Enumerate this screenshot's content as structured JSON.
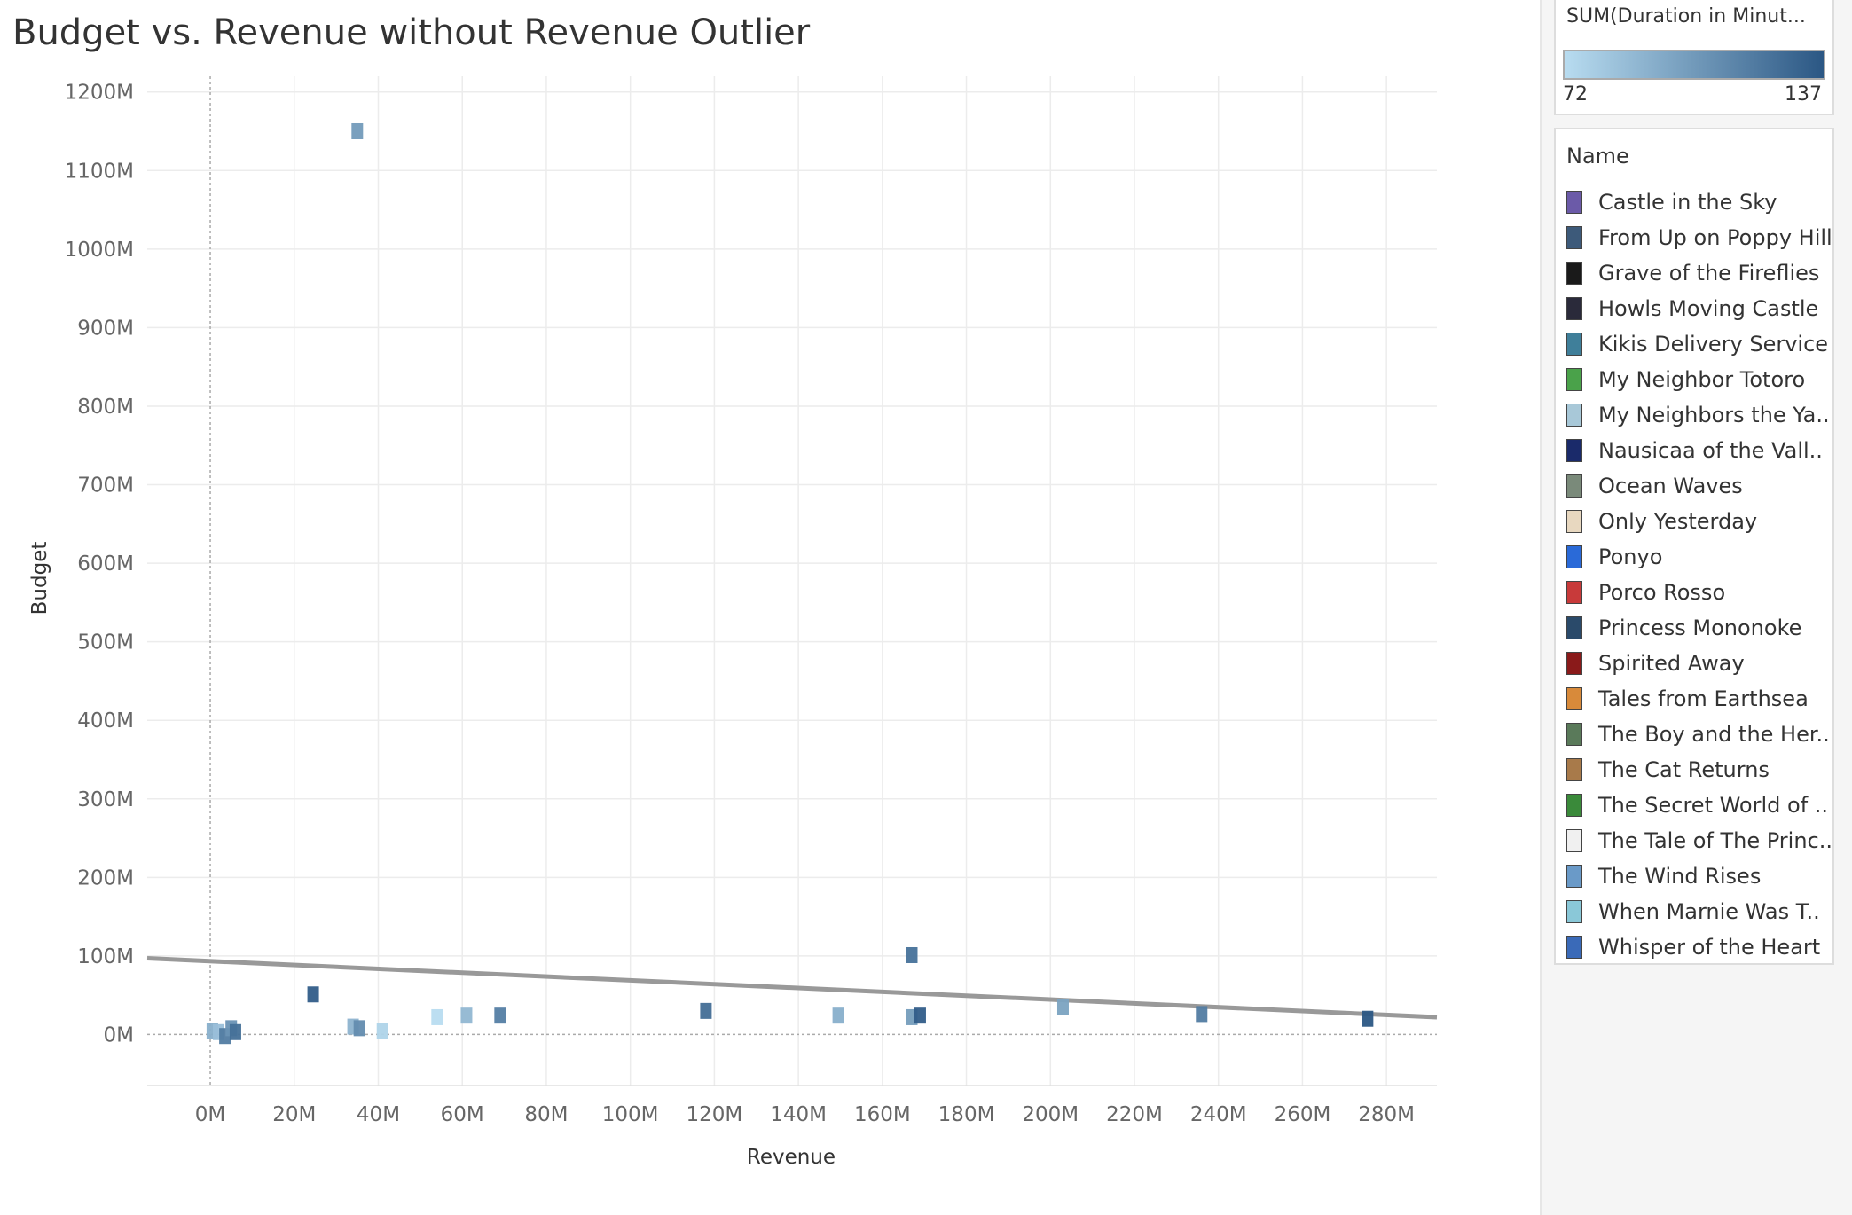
{
  "title": "Budget vs. Revenue without Revenue Outlier",
  "colors": {
    "ramp_low": "#b8dcf0",
    "ramp_high": "#2b5784",
    "trend_line": "#999999",
    "grid": "#ececec",
    "zero_line": "#aaaaaa",
    "axis_text": "#666666"
  },
  "color_legend": {
    "title": "SUM(Duration in Minut...",
    "min_label": "72",
    "max_label": "137"
  },
  "name_legend": {
    "title": "Name",
    "items": [
      {
        "label": "Castle in the Sky",
        "color": "#6b5aa8"
      },
      {
        "label": "From Up on Poppy Hill",
        "color": "#3d5a7a"
      },
      {
        "label": "Grave of the Fireflies",
        "color": "#1a1a1a"
      },
      {
        "label": "Howls Moving Castle",
        "color": "#2a2a3a"
      },
      {
        "label": "Kikis Delivery Service",
        "color": "#3f7f9a"
      },
      {
        "label": "My Neighbor Totoro",
        "color": "#4aa24a"
      },
      {
        "label": "My Neighbors the Ya..",
        "color": "#a8c8d8"
      },
      {
        "label": "Nausicaa of the Vall..",
        "color": "#1a2a6a"
      },
      {
        "label": "Ocean Waves",
        "color": "#7a8a7a"
      },
      {
        "label": "Only Yesterday",
        "color": "#e8d8c0"
      },
      {
        "label": "Ponyo",
        "color": "#2a6ad8"
      },
      {
        "label": "Porco Rosso",
        "color": "#c83a3a"
      },
      {
        "label": "Princess Mononoke",
        "color": "#2a4a6a"
      },
      {
        "label": "Spirited Away",
        "color": "#8a1a1a"
      },
      {
        "label": "Tales from Earthsea",
        "color": "#d88a3a"
      },
      {
        "label": "The Boy and the Her..",
        "color": "#5a7a5a"
      },
      {
        "label": "The Cat Returns",
        "color": "#a87a4a"
      },
      {
        "label": "The Secret World of ..",
        "color": "#3a8a3a"
      },
      {
        "label": "The Tale of The Princ..",
        "color": "#f0f0f0"
      },
      {
        "label": "The Wind Rises",
        "color": "#6a9ac8"
      },
      {
        "label": "When Marnie Was T..",
        "color": "#8ac8d8"
      },
      {
        "label": "Whisper of the Heart",
        "color": "#3a6ab8"
      }
    ]
  },
  "chart_data": {
    "type": "scatter",
    "title": "Budget vs. Revenue without Revenue Outlier",
    "xlabel": "Revenue",
    "ylabel": "Budget",
    "xlim": [
      -15,
      292
    ],
    "ylim": [
      -65,
      1220
    ],
    "x_ticks": [
      0,
      20,
      40,
      60,
      80,
      100,
      120,
      140,
      160,
      180,
      200,
      220,
      240,
      260,
      280
    ],
    "x_tick_labels": [
      "0M",
      "20M",
      "40M",
      "60M",
      "80M",
      "100M",
      "120M",
      "140M",
      "160M",
      "180M",
      "200M",
      "220M",
      "240M",
      "260M",
      "280M"
    ],
    "y_ticks": [
      0,
      100,
      200,
      300,
      400,
      500,
      600,
      700,
      800,
      900,
      1000,
      1100,
      1200
    ],
    "y_tick_labels": [
      "0M",
      "100M",
      "200M",
      "300M",
      "400M",
      "500M",
      "600M",
      "700M",
      "800M",
      "900M",
      "1000M",
      "1100M",
      "1200M"
    ],
    "grid": true,
    "color_measure_range": [
      72,
      137
    ],
    "trend_line": {
      "x": [
        -15,
        292
      ],
      "y": [
        97,
        22
      ]
    },
    "points": [
      {
        "x": 35,
        "y": 1150,
        "duration": 104
      },
      {
        "x": 0.5,
        "y": 5,
        "duration": 94
      },
      {
        "x": 2,
        "y": 3,
        "duration": 86
      },
      {
        "x": 3.5,
        "y": -2,
        "duration": 119
      },
      {
        "x": 5,
        "y": 8,
        "duration": 108
      },
      {
        "x": 6,
        "y": 3,
        "duration": 125
      },
      {
        "x": 24.5,
        "y": 51,
        "duration": 134
      },
      {
        "x": 34,
        "y": 10,
        "duration": 92
      },
      {
        "x": 35.5,
        "y": 8,
        "duration": 111
      },
      {
        "x": 41,
        "y": 5,
        "duration": 76
      },
      {
        "x": 54,
        "y": 22,
        "duration": 72
      },
      {
        "x": 61,
        "y": 24,
        "duration": 90
      },
      {
        "x": 69,
        "y": 24,
        "duration": 118
      },
      {
        "x": 118,
        "y": 30,
        "duration": 126
      },
      {
        "x": 149.5,
        "y": 24,
        "duration": 94
      },
      {
        "x": 167,
        "y": 101,
        "duration": 124
      },
      {
        "x": 167,
        "y": 22,
        "duration": 103
      },
      {
        "x": 169,
        "y": 24,
        "duration": 134
      },
      {
        "x": 203,
        "y": 35,
        "duration": 100
      },
      {
        "x": 236,
        "y": 26,
        "duration": 119
      },
      {
        "x": 275.5,
        "y": 20,
        "duration": 137
      }
    ]
  }
}
